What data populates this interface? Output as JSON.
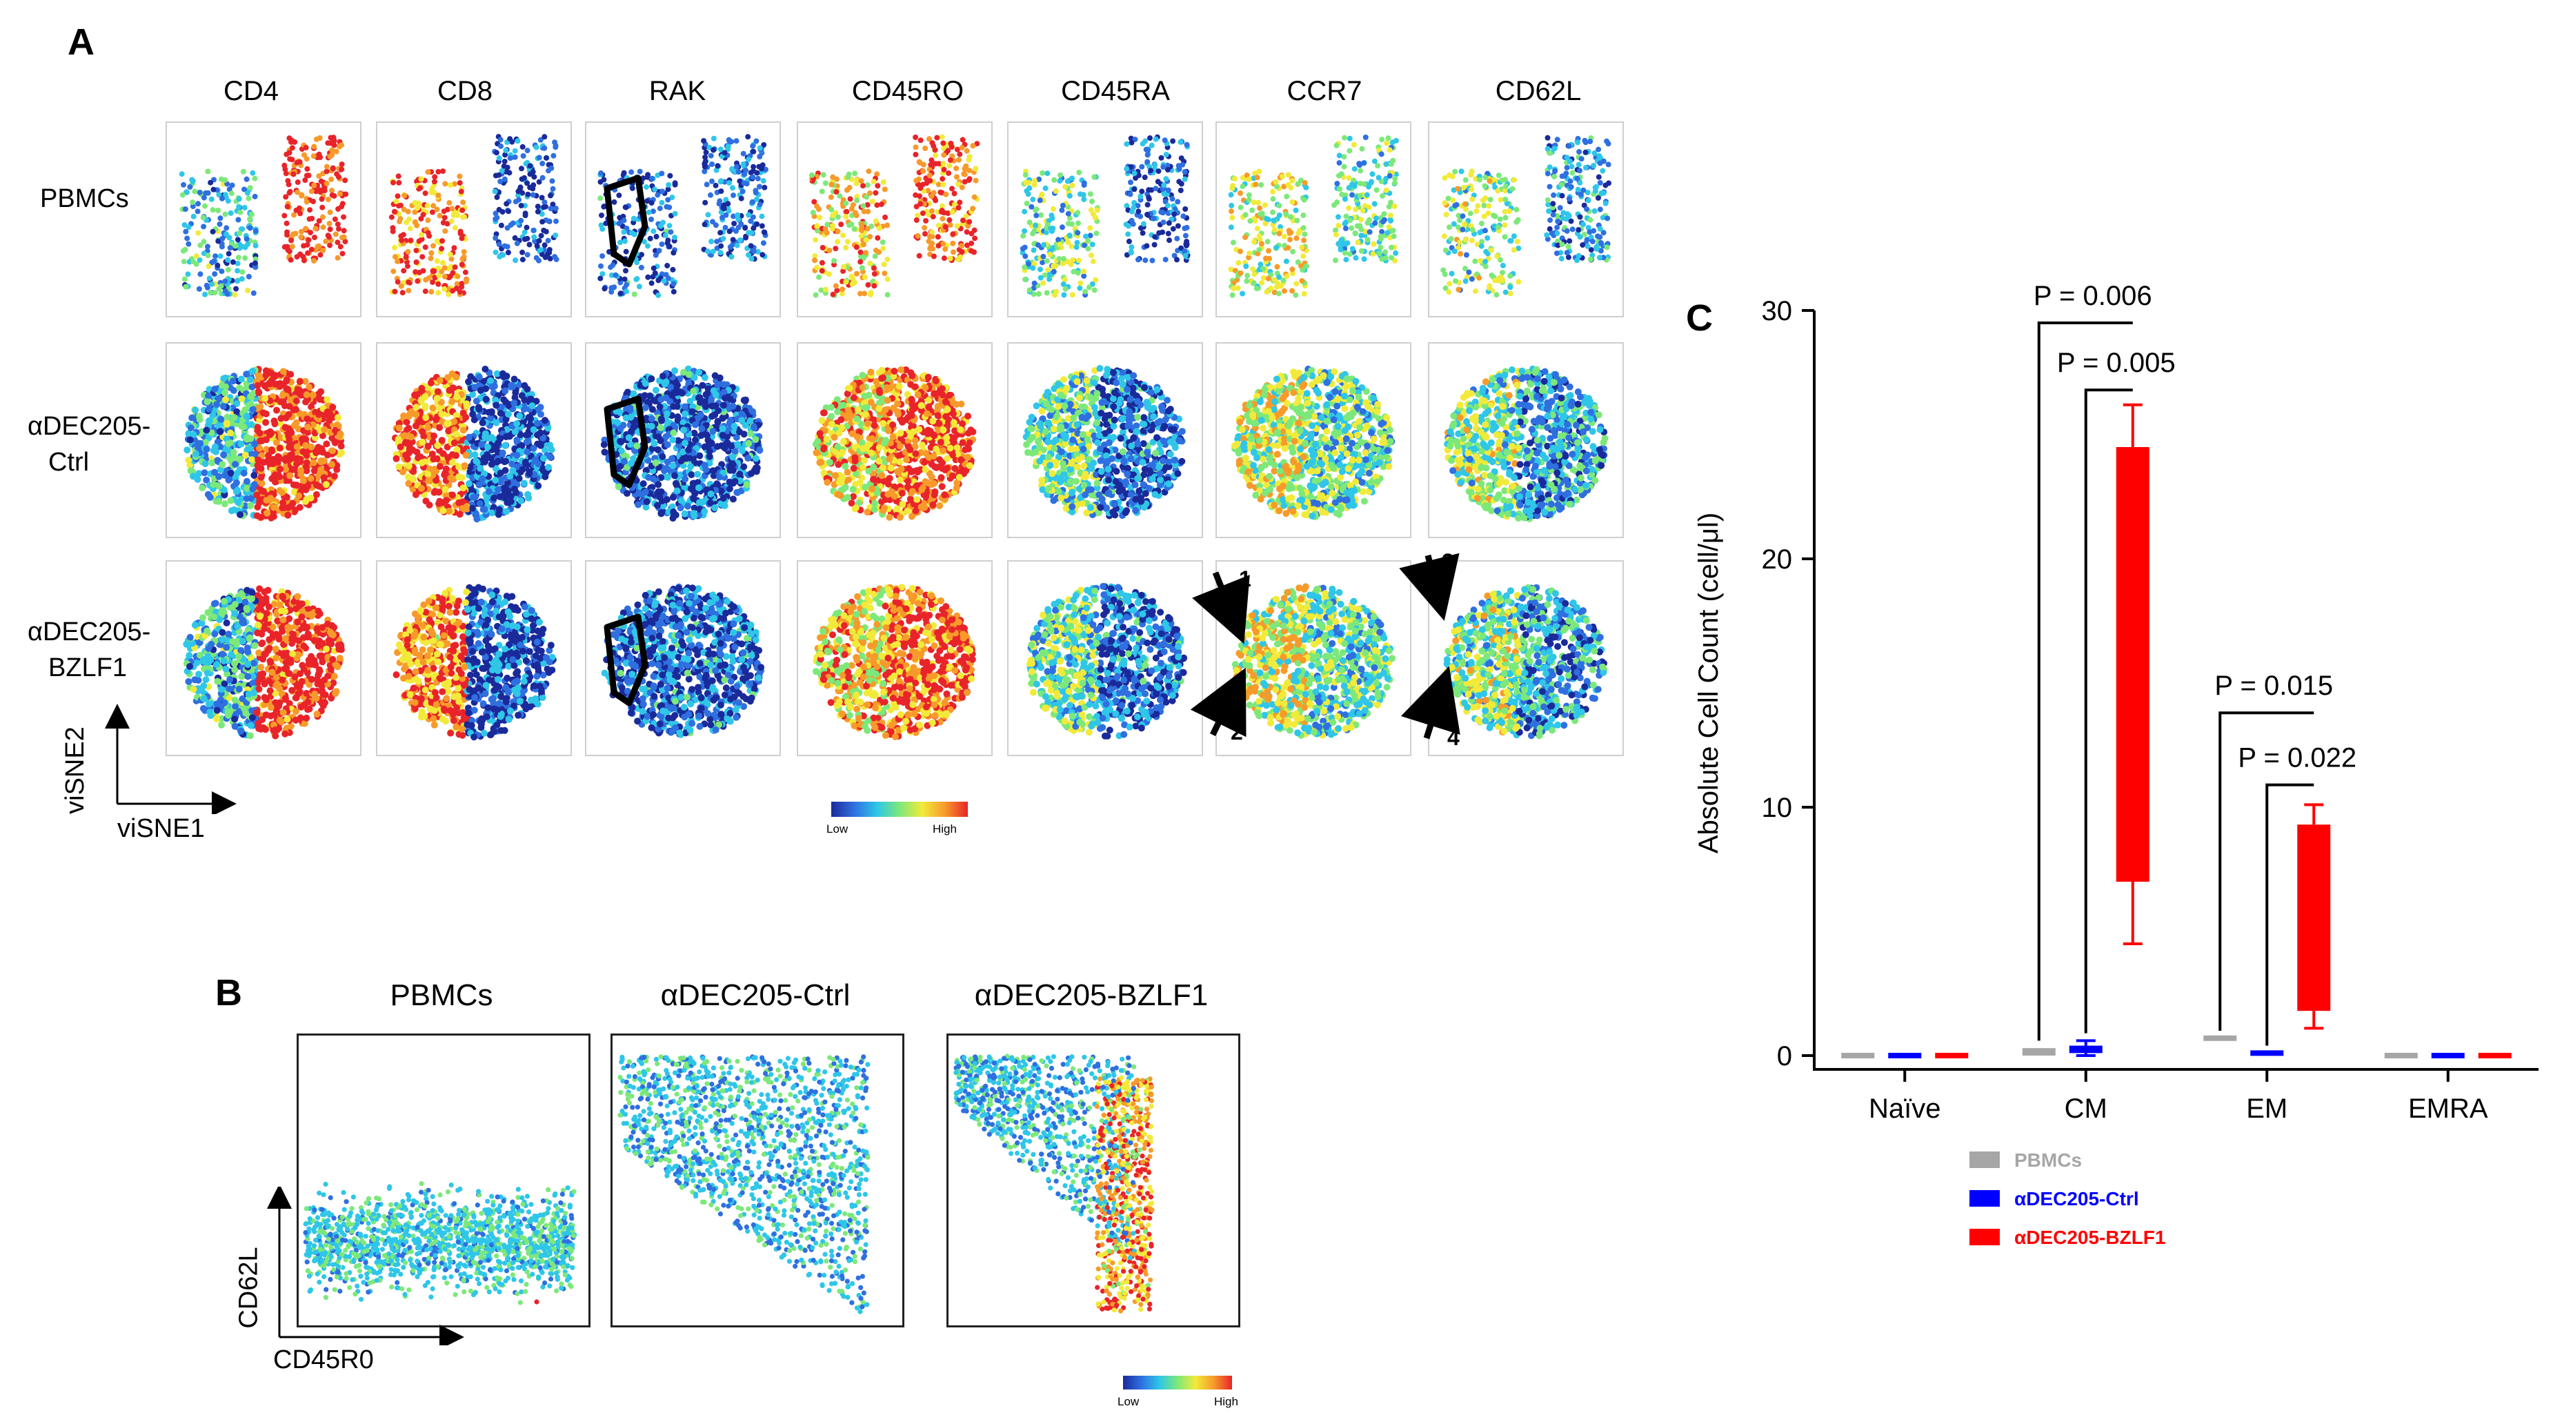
{
  "panel_a": {
    "letter": "A",
    "columns": [
      "CD4",
      "CD8",
      "RAK",
      "CD45RO",
      "CD45RA",
      "CCR7",
      "CD62L"
    ],
    "rows": [
      {
        "label_lines": [
          "PBMCs"
        ]
      },
      {
        "label_lines": [
          "αDEC205-",
          "Ctrl"
        ]
      },
      {
        "label_lines": [
          "αDEC205-",
          "BZLF1"
        ]
      }
    ],
    "axis_y": "viSNE2",
    "axis_x": "viSNE1",
    "scale_low": "Low",
    "scale_high": "High",
    "arrow_labels": [
      "1",
      "2",
      "3",
      "4"
    ]
  },
  "panel_b": {
    "letter": "B",
    "titles": [
      "PBMCs",
      "αDEC205-Ctrl",
      "αDEC205-BZLF1"
    ],
    "axis_y": "CD62L",
    "axis_x": "CD45R0",
    "scale_low": "Low",
    "scale_high": "High"
  },
  "panel_c": {
    "letter": "C"
  },
  "colors": {
    "pbmc": "#a6a6a6",
    "ctrl": "#0000ff",
    "bzlf1": "#ff0000"
  },
  "chart_data": {
    "type": "bar",
    "ylabel": "Absolute Cell Count (cell/μl)",
    "ylim": [
      0,
      30
    ],
    "yticks": [
      "0",
      "10",
      "20",
      "30"
    ],
    "categories": [
      "Naïve",
      "CM",
      "EM",
      "EMRA"
    ],
    "series": [
      {
        "name": "PBMCs",
        "color": "#a6a6a6",
        "boxes": [
          [
            0,
            0,
            0,
            0
          ],
          [
            0,
            0.3,
            0,
            0.3
          ],
          [
            0.5,
            0.7,
            0.5,
            0.7
          ],
          [
            0,
            0,
            0,
            0
          ]
        ]
      },
      {
        "name": "αDEC205-Ctrl",
        "color": "#0000ff",
        "boxes": [
          [
            0,
            0,
            0,
            0
          ],
          [
            0.1,
            0.4,
            0.0,
            0.6
          ],
          [
            0,
            0.1,
            0,
            0.1
          ],
          [
            0,
            0,
            0,
            0
          ]
        ]
      },
      {
        "name": "αDEC205-BZLF1",
        "color": "#ff0000",
        "boxes": [
          [
            0,
            0,
            0,
            0
          ],
          [
            7,
            24.5,
            4.5,
            26.2
          ],
          [
            1.8,
            9.3,
            1.1,
            10.1
          ],
          [
            0,
            0,
            0,
            0
          ]
        ]
      }
    ],
    "box_order": "[q1, q3, min, max]",
    "annotations": [
      {
        "text": "P = 0.006",
        "category": "CM",
        "from_series": 0,
        "to_series": 2,
        "level": 29.5
      },
      {
        "text": "P = 0.005",
        "category": "CM",
        "from_series": 1,
        "to_series": 2,
        "level": 26.8
      },
      {
        "text": "P = 0.015",
        "category": "EM",
        "from_series": 0,
        "to_series": 2,
        "level": 13.8
      },
      {
        "text": "P = 0.022",
        "category": "EM",
        "from_series": 1,
        "to_series": 2,
        "level": 10.9
      }
    ],
    "legend_position": "bottom"
  }
}
